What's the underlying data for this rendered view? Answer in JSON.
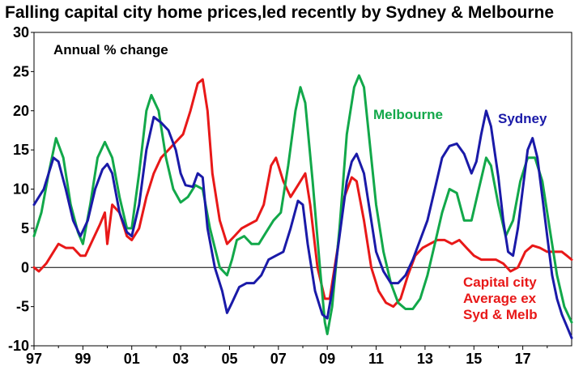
{
  "chart_data": {
    "type": "line",
    "title": "Falling capital city home prices,led recently by Sydney & Melbourne",
    "ylabel": "Annual % change",
    "xlabel": "",
    "ylim": [
      -10,
      30
    ],
    "xlim": [
      1997,
      2019
    ],
    "yticks": [
      -10,
      -5,
      0,
      5,
      10,
      15,
      20,
      25,
      30
    ],
    "xtick_labels": [
      "97",
      "99",
      "01",
      "03",
      "05",
      "07",
      "09",
      "11",
      "13",
      "15",
      "17"
    ],
    "grid": false,
    "zero_line": true,
    "series": [
      {
        "name": "Sydney",
        "color": "#1a1aa8",
        "points": [
          [
            1997.0,
            8.0
          ],
          [
            1997.4,
            10.0
          ],
          [
            1997.8,
            14.0
          ],
          [
            1998.0,
            13.5
          ],
          [
            1998.3,
            10.0
          ],
          [
            1998.6,
            6.0
          ],
          [
            1998.9,
            4.0
          ],
          [
            1999.2,
            6.0
          ],
          [
            1999.5,
            10.0
          ],
          [
            1999.8,
            12.5
          ],
          [
            2000.0,
            13.2
          ],
          [
            2000.2,
            12.0
          ],
          [
            2000.5,
            7.0
          ],
          [
            2000.8,
            4.5
          ],
          [
            2001.0,
            4.0
          ],
          [
            2001.3,
            8.0
          ],
          [
            2001.6,
            15.0
          ],
          [
            2001.9,
            19.2
          ],
          [
            2002.2,
            18.5
          ],
          [
            2002.5,
            17.5
          ],
          [
            2002.8,
            15.0
          ],
          [
            2003.0,
            12.0
          ],
          [
            2003.2,
            10.5
          ],
          [
            2003.5,
            10.3
          ],
          [
            2003.7,
            12.0
          ],
          [
            2003.9,
            11.5
          ],
          [
            2004.1,
            5.0
          ],
          [
            2004.4,
            0.0
          ],
          [
            2004.7,
            -3.0
          ],
          [
            2004.9,
            -5.8
          ],
          [
            2005.1,
            -4.5
          ],
          [
            2005.4,
            -2.5
          ],
          [
            2005.7,
            -2.0
          ],
          [
            2006.0,
            -2.0
          ],
          [
            2006.3,
            -1.0
          ],
          [
            2006.6,
            1.0
          ],
          [
            2006.9,
            1.5
          ],
          [
            2007.2,
            2.0
          ],
          [
            2007.5,
            5.0
          ],
          [
            2007.8,
            8.5
          ],
          [
            2008.0,
            8.0
          ],
          [
            2008.2,
            3.0
          ],
          [
            2008.5,
            -3.0
          ],
          [
            2008.8,
            -6.0
          ],
          [
            2009.0,
            -6.5
          ],
          [
            2009.2,
            -3.0
          ],
          [
            2009.5,
            4.0
          ],
          [
            2009.8,
            11.0
          ],
          [
            2010.0,
            13.5
          ],
          [
            2010.2,
            14.5
          ],
          [
            2010.5,
            12.0
          ],
          [
            2010.8,
            6.0
          ],
          [
            2011.0,
            2.0
          ],
          [
            2011.3,
            -0.5
          ],
          [
            2011.6,
            -2.0
          ],
          [
            2011.9,
            -2.0
          ],
          [
            2012.2,
            -1.0
          ],
          [
            2012.5,
            1.0
          ],
          [
            2012.8,
            3.5
          ],
          [
            2013.1,
            6.0
          ],
          [
            2013.4,
            10.0
          ],
          [
            2013.7,
            14.0
          ],
          [
            2014.0,
            15.5
          ],
          [
            2014.3,
            15.8
          ],
          [
            2014.6,
            14.5
          ],
          [
            2014.9,
            12.0
          ],
          [
            2015.1,
            13.5
          ],
          [
            2015.3,
            17.0
          ],
          [
            2015.5,
            20.0
          ],
          [
            2015.7,
            18.0
          ],
          [
            2016.0,
            11.5
          ],
          [
            2016.2,
            6.0
          ],
          [
            2016.4,
            2.0
          ],
          [
            2016.6,
            1.5
          ],
          [
            2016.8,
            5.0
          ],
          [
            2017.0,
            10.0
          ],
          [
            2017.2,
            15.0
          ],
          [
            2017.4,
            16.5
          ],
          [
            2017.6,
            14.0
          ],
          [
            2017.8,
            9.0
          ],
          [
            2018.0,
            4.0
          ],
          [
            2018.2,
            -1.0
          ],
          [
            2018.4,
            -4.0
          ],
          [
            2018.6,
            -6.0
          ],
          [
            2018.8,
            -7.5
          ],
          [
            2019.0,
            -9.0
          ]
        ]
      },
      {
        "name": "Melbourne",
        "color": "#12a84a",
        "points": [
          [
            1997.0,
            4.0
          ],
          [
            1997.3,
            7.0
          ],
          [
            1997.6,
            12.0
          ],
          [
            1997.9,
            16.5
          ],
          [
            1998.2,
            14.0
          ],
          [
            1998.5,
            8.0
          ],
          [
            1998.8,
            4.5
          ],
          [
            1999.0,
            3.0
          ],
          [
            1999.3,
            8.0
          ],
          [
            1999.6,
            14.0
          ],
          [
            1999.9,
            16.0
          ],
          [
            2000.2,
            14.0
          ],
          [
            2000.5,
            9.0
          ],
          [
            2000.8,
            5.0
          ],
          [
            2001.0,
            5.0
          ],
          [
            2001.3,
            12.0
          ],
          [
            2001.6,
            20.0
          ],
          [
            2001.8,
            22.0
          ],
          [
            2002.1,
            20.0
          ],
          [
            2002.4,
            14.0
          ],
          [
            2002.7,
            10.0
          ],
          [
            2003.0,
            8.3
          ],
          [
            2003.3,
            9.0
          ],
          [
            2003.6,
            10.5
          ],
          [
            2003.9,
            10.0
          ],
          [
            2004.2,
            5.0
          ],
          [
            2004.6,
            0.0
          ],
          [
            2004.9,
            -1.0
          ],
          [
            2005.1,
            1.0
          ],
          [
            2005.3,
            3.5
          ],
          [
            2005.6,
            4.0
          ],
          [
            2005.9,
            3.0
          ],
          [
            2006.2,
            3.0
          ],
          [
            2006.5,
            4.5
          ],
          [
            2006.8,
            6.0
          ],
          [
            2007.1,
            7.0
          ],
          [
            2007.4,
            13.0
          ],
          [
            2007.7,
            20.0
          ],
          [
            2007.9,
            23.0
          ],
          [
            2008.1,
            21.0
          ],
          [
            2008.4,
            11.0
          ],
          [
            2008.7,
            0.0
          ],
          [
            2008.9,
            -7.0
          ],
          [
            2009.0,
            -8.5
          ],
          [
            2009.2,
            -5.0
          ],
          [
            2009.5,
            5.0
          ],
          [
            2009.8,
            17.0
          ],
          [
            2010.1,
            23.0
          ],
          [
            2010.3,
            24.5
          ],
          [
            2010.5,
            23.0
          ],
          [
            2010.8,
            14.0
          ],
          [
            2011.0,
            8.0
          ],
          [
            2011.3,
            2.0
          ],
          [
            2011.6,
            -2.0
          ],
          [
            2011.9,
            -4.5
          ],
          [
            2012.2,
            -5.3
          ],
          [
            2012.5,
            -5.3
          ],
          [
            2012.8,
            -4.0
          ],
          [
            2013.1,
            -1.0
          ],
          [
            2013.4,
            3.0
          ],
          [
            2013.7,
            7.0
          ],
          [
            2014.0,
            10.0
          ],
          [
            2014.3,
            9.5
          ],
          [
            2014.6,
            6.0
          ],
          [
            2014.9,
            6.0
          ],
          [
            2015.2,
            10.0
          ],
          [
            2015.5,
            14.0
          ],
          [
            2015.7,
            13.0
          ],
          [
            2016.0,
            8.0
          ],
          [
            2016.3,
            4.0
          ],
          [
            2016.6,
            6.0
          ],
          [
            2016.9,
            11.0
          ],
          [
            2017.2,
            14.0
          ],
          [
            2017.5,
            14.0
          ],
          [
            2017.8,
            11.0
          ],
          [
            2018.1,
            5.0
          ],
          [
            2018.4,
            -1.0
          ],
          [
            2018.7,
            -5.0
          ],
          [
            2019.0,
            -7.0
          ]
        ]
      },
      {
        "name": "Capital city Average ex Syd & Melb",
        "color": "#e81818",
        "points": [
          [
            1997.0,
            0.0
          ],
          [
            1997.2,
            -0.5
          ],
          [
            1997.5,
            0.5
          ],
          [
            1997.8,
            2.0
          ],
          [
            1998.0,
            3.0
          ],
          [
            1998.3,
            2.5
          ],
          [
            1998.6,
            2.5
          ],
          [
            1998.9,
            1.5
          ],
          [
            1999.1,
            1.5
          ],
          [
            1999.4,
            3.5
          ],
          [
            1999.7,
            5.5
          ],
          [
            1999.9,
            7.0
          ],
          [
            2000.0,
            3.0
          ],
          [
            2000.2,
            8.0
          ],
          [
            2000.5,
            7.0
          ],
          [
            2000.8,
            4.0
          ],
          [
            2001.0,
            3.5
          ],
          [
            2001.3,
            5.0
          ],
          [
            2001.6,
            9.0
          ],
          [
            2001.9,
            12.0
          ],
          [
            2002.2,
            14.0
          ],
          [
            2002.5,
            15.0
          ],
          [
            2002.8,
            16.0
          ],
          [
            2003.1,
            17.0
          ],
          [
            2003.4,
            20.0
          ],
          [
            2003.7,
            23.5
          ],
          [
            2003.9,
            24.0
          ],
          [
            2004.1,
            20.0
          ],
          [
            2004.3,
            12.0
          ],
          [
            2004.6,
            6.0
          ],
          [
            2004.9,
            3.0
          ],
          [
            2005.2,
            4.0
          ],
          [
            2005.5,
            5.0
          ],
          [
            2005.8,
            5.5
          ],
          [
            2006.1,
            6.0
          ],
          [
            2006.4,
            8.0
          ],
          [
            2006.7,
            13.0
          ],
          [
            2006.9,
            14.0
          ],
          [
            2007.2,
            11.0
          ],
          [
            2007.5,
            9.0
          ],
          [
            2007.8,
            10.5
          ],
          [
            2008.1,
            12.0
          ],
          [
            2008.3,
            8.0
          ],
          [
            2008.6,
            0.0
          ],
          [
            2008.9,
            -4.0
          ],
          [
            2009.1,
            -4.0
          ],
          [
            2009.4,
            2.0
          ],
          [
            2009.7,
            9.0
          ],
          [
            2010.0,
            11.5
          ],
          [
            2010.2,
            11.0
          ],
          [
            2010.5,
            6.0
          ],
          [
            2010.8,
            0.0
          ],
          [
            2011.1,
            -3.0
          ],
          [
            2011.4,
            -4.5
          ],
          [
            2011.7,
            -5.0
          ],
          [
            2012.0,
            -4.0
          ],
          [
            2012.3,
            -1.0
          ],
          [
            2012.6,
            1.5
          ],
          [
            2012.9,
            2.5
          ],
          [
            2013.2,
            3.0
          ],
          [
            2013.5,
            3.5
          ],
          [
            2013.8,
            3.5
          ],
          [
            2014.1,
            3.0
          ],
          [
            2014.4,
            3.5
          ],
          [
            2014.7,
            2.5
          ],
          [
            2015.0,
            1.5
          ],
          [
            2015.3,
            1.0
          ],
          [
            2015.6,
            1.0
          ],
          [
            2015.9,
            1.0
          ],
          [
            2016.2,
            0.5
          ],
          [
            2016.5,
            -0.5
          ],
          [
            2016.8,
            0.0
          ],
          [
            2017.1,
            2.0
          ],
          [
            2017.4,
            2.8
          ],
          [
            2017.7,
            2.5
          ],
          [
            2018.0,
            2.0
          ],
          [
            2018.3,
            2.0
          ],
          [
            2018.6,
            2.0
          ],
          [
            2018.8,
            1.5
          ],
          [
            2019.0,
            1.0
          ]
        ]
      }
    ],
    "annotations": [
      {
        "series": "Melbourne",
        "lines": [
          "Melbourne"
        ]
      },
      {
        "series": "Sydney",
        "lines": [
          "Sydney"
        ]
      },
      {
        "series": "Capital city Average ex Syd & Melb",
        "lines": [
          "Capital city",
          "Average ex",
          "Syd & Melb"
        ]
      }
    ]
  }
}
